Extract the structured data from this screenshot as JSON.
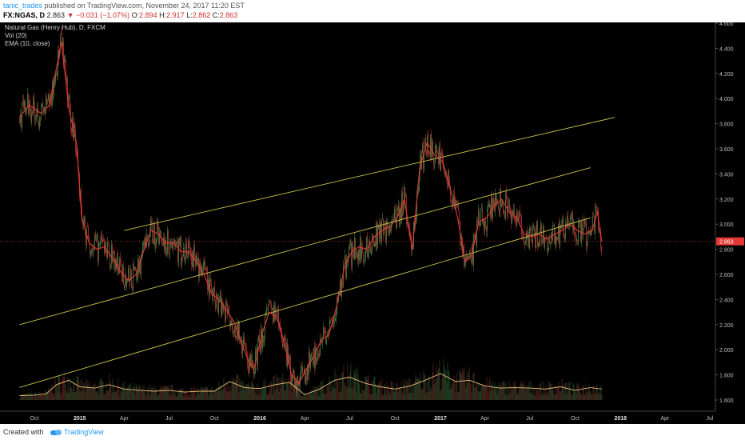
{
  "header": {
    "author": "tanic_trades",
    "published_text": " published on TradingView.com, November 24, 2017 11:20 EST",
    "symbol": "FX:NGAS, D",
    "last": "2.863",
    "change": "−0.031 (−1.07%)",
    "open_label": "O:",
    "open": "2.894",
    "high_label": "H:",
    "high": "2.917",
    "low_label": "L:",
    "low": "2.862",
    "close_label": "C:",
    "close": "2.863"
  },
  "legend": {
    "title": "Natural Gas (Henry Hub), D, FXCM",
    "vol": "Vol (20)",
    "ema": "EMA (10, close)"
  },
  "footer": {
    "created_with": "Created with",
    "brand": "TradingView"
  },
  "colors": {
    "background": "#000000",
    "up_candle": "#3e7a3e",
    "down_candle": "#a23030",
    "ema_line": "#e53935",
    "channel_lines": "#c9c34a",
    "volume_ma": "#e8b87a",
    "price_tag": "#e53935"
  },
  "chart_data": {
    "type": "line",
    "title": "Natural Gas (Henry Hub), D, FXCM",
    "series": [
      {
        "name": "EMA (10, close)",
        "x": [
          "2014-09-01",
          "2014-09-20",
          "2014-10-15",
          "2014-11-01",
          "2014-11-15",
          "2014-11-25",
          "2014-12-10",
          "2014-12-25",
          "2015-01-05",
          "2015-01-20",
          "2015-02-05",
          "2015-02-20",
          "2015-03-10",
          "2015-03-25",
          "2015-04-10",
          "2015-04-25",
          "2015-05-10",
          "2015-05-25",
          "2015-06-10",
          "2015-06-25",
          "2015-07-10",
          "2015-07-25",
          "2015-08-10",
          "2015-08-25",
          "2015-09-10",
          "2015-09-25",
          "2015-10-10",
          "2015-10-25",
          "2015-11-10",
          "2015-11-25",
          "2015-12-10",
          "2015-12-20",
          "2016-01-05",
          "2016-01-20",
          "2016-02-05",
          "2016-02-20",
          "2016-03-05",
          "2016-03-20",
          "2016-04-05",
          "2016-04-20",
          "2016-05-05",
          "2016-05-20",
          "2016-06-05",
          "2016-06-20",
          "2016-07-05",
          "2016-07-20",
          "2016-08-05",
          "2016-08-20",
          "2016-09-05",
          "2016-09-20",
          "2016-10-05",
          "2016-10-20",
          "2016-11-05",
          "2016-11-20",
          "2016-12-05",
          "2016-12-20",
          "2017-01-05",
          "2017-01-20",
          "2017-02-05",
          "2017-02-20",
          "2017-03-05",
          "2017-03-20",
          "2017-04-05",
          "2017-04-20",
          "2017-05-05",
          "2017-05-20",
          "2017-06-05",
          "2017-06-20",
          "2017-07-05",
          "2017-07-20",
          "2017-08-05",
          "2017-08-20",
          "2017-09-05",
          "2017-09-20",
          "2017-10-05",
          "2017-10-20",
          "2017-11-05",
          "2017-11-15",
          "2017-11-24"
        ],
        "y": [
          3.85,
          3.95,
          3.88,
          3.95,
          4.25,
          4.45,
          3.92,
          3.65,
          3.05,
          2.85,
          2.8,
          2.82,
          2.72,
          2.62,
          2.55,
          2.6,
          2.78,
          2.95,
          2.92,
          2.85,
          2.85,
          2.78,
          2.78,
          2.7,
          2.6,
          2.45,
          2.4,
          2.32,
          2.22,
          2.05,
          1.9,
          1.85,
          2.12,
          2.3,
          2.25,
          2.05,
          1.8,
          1.73,
          1.85,
          1.95,
          2.08,
          2.12,
          2.35,
          2.65,
          2.78,
          2.82,
          2.8,
          2.9,
          2.95,
          2.98,
          3.05,
          3.2,
          2.8,
          3.45,
          3.65,
          3.55,
          3.5,
          3.3,
          3.05,
          2.7,
          2.75,
          3.02,
          3.05,
          3.15,
          3.2,
          3.1,
          3.05,
          2.92,
          2.9,
          2.92,
          2.88,
          2.92,
          2.95,
          3.0,
          2.95,
          2.92,
          2.95,
          3.1,
          2.863
        ]
      },
      {
        "name": "Vol (20)",
        "x": [
          "2014-09-01",
          "2014-10-01",
          "2014-10-25",
          "2014-11-15",
          "2014-12-10",
          "2015-01-01",
          "2015-02-01",
          "2015-03-01",
          "2015-04-01",
          "2015-05-01",
          "2015-06-01",
          "2015-07-01",
          "2015-08-01",
          "2015-09-01",
          "2015-10-01",
          "2015-11-01",
          "2015-12-01",
          "2016-01-01",
          "2016-02-01",
          "2016-03-01",
          "2016-04-01",
          "2016-05-01",
          "2016-06-01",
          "2016-07-01",
          "2016-08-01",
          "2016-09-01",
          "2016-10-01",
          "2016-11-01",
          "2016-12-01",
          "2017-01-01",
          "2017-02-01",
          "2017-03-01",
          "2017-04-01",
          "2017-05-01",
          "2017-06-01",
          "2017-07-01",
          "2017-08-01",
          "2017-09-01",
          "2017-10-01",
          "2017-11-01",
          "2017-11-24"
        ],
        "y": [
          0.1,
          0.11,
          0.14,
          0.35,
          0.45,
          0.3,
          0.27,
          0.35,
          0.25,
          0.22,
          0.2,
          0.22,
          0.18,
          0.2,
          0.2,
          0.42,
          0.28,
          0.26,
          0.35,
          0.4,
          0.12,
          0.25,
          0.45,
          0.52,
          0.38,
          0.3,
          0.25,
          0.32,
          0.45,
          0.6,
          0.42,
          0.45,
          0.32,
          0.27,
          0.28,
          0.27,
          0.25,
          0.3,
          0.22,
          0.28,
          0.25
        ]
      }
    ],
    "channels": [
      {
        "name": "upper",
        "x1": "2015-04-01",
        "y1": 2.95,
        "x2": "2017-12-20",
        "y2": 3.85
      },
      {
        "name": "middle",
        "x1": "2014-09-01",
        "y1": 2.2,
        "x2": "2017-11-01",
        "y2": 3.45
      },
      {
        "name": "lower",
        "x1": "2014-09-01",
        "y1": 1.7,
        "x2": "2017-11-01",
        "y2": 3.05
      }
    ],
    "last_price": 2.863,
    "x_ticks": [
      "Oct",
      "2015",
      "Apr",
      "Jul",
      "Oct",
      "2016",
      "Apr",
      "Jul",
      "Oct",
      "2017",
      "Apr",
      "Jul",
      "Oct",
      "2018",
      "Apr",
      "Jul"
    ],
    "x_tick_dates": [
      "2014-10-01",
      "2015-01-01",
      "2015-04-01",
      "2015-07-01",
      "2015-10-01",
      "2016-01-01",
      "2016-04-01",
      "2016-07-01",
      "2016-10-01",
      "2017-01-01",
      "2017-04-01",
      "2017-07-01",
      "2017-10-01",
      "2018-01-01",
      "2018-04-01",
      "2018-07-01"
    ],
    "y_ticks": [
      "4.600",
      "4.400",
      "4.200",
      "4.000",
      "3.800",
      "3.600",
      "3.400",
      "3.200",
      "3.000",
      "2.800",
      "2.600",
      "2.400",
      "2.200",
      "2.000",
      "1.800",
      "1.600"
    ],
    "ylim": [
      1.55,
      4.6
    ],
    "grid": false
  }
}
